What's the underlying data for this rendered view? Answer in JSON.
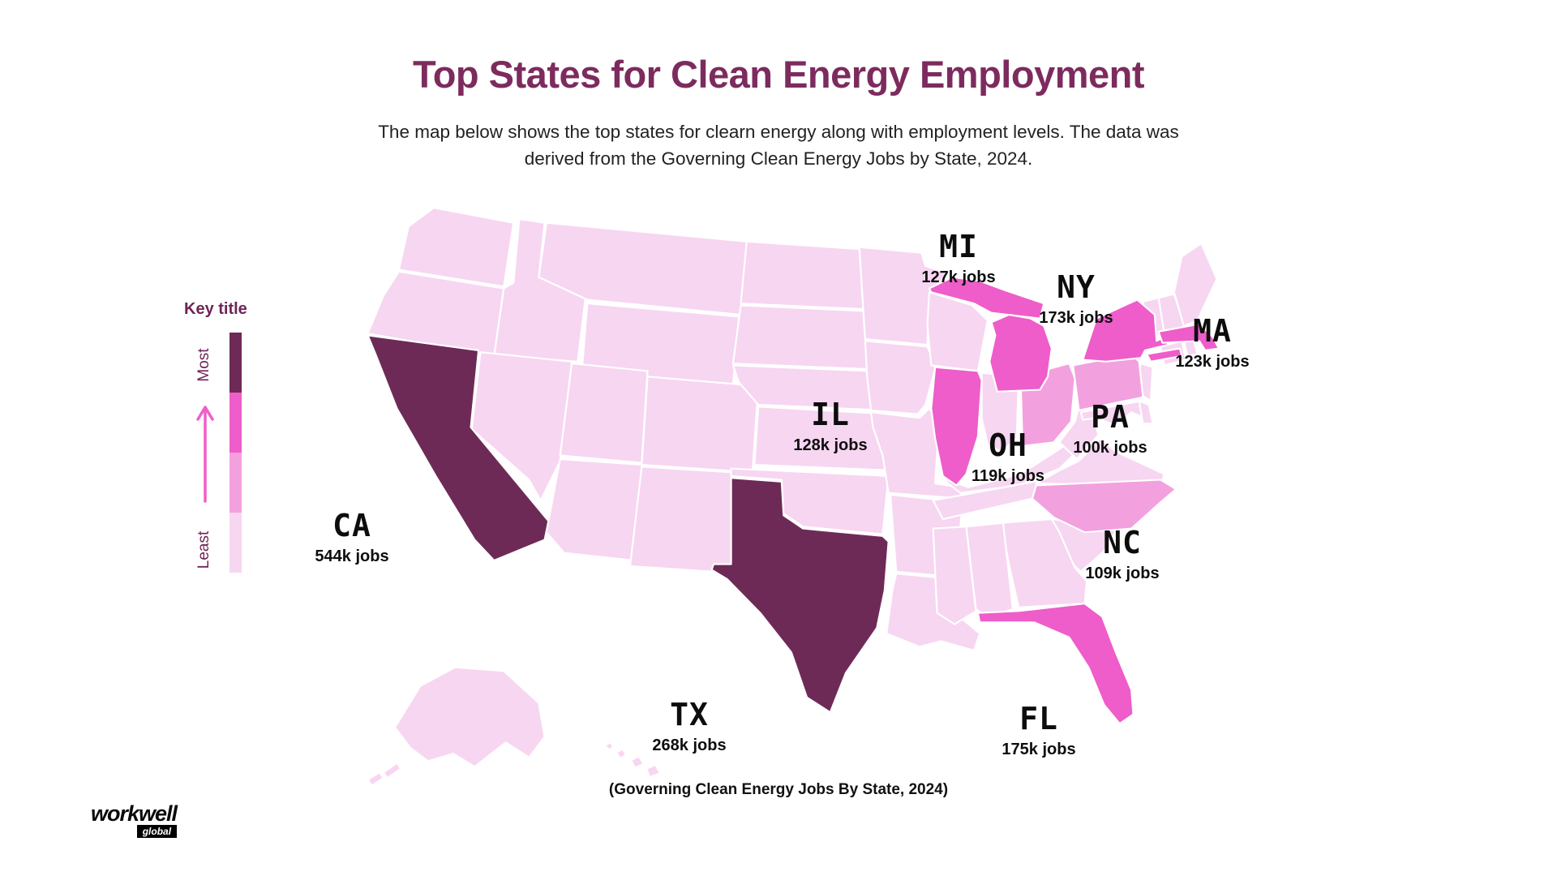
{
  "header": {
    "title": "Top States for Clean Energy Employment",
    "subtitle_line1": "The map below shows the top states for clearn energy along with employment levels. The data was",
    "subtitle_line2": "derived from the Governing Clean Energy Jobs by State, 2024.",
    "title_color": "#7d2b5e"
  },
  "legend": {
    "title": "Key title",
    "most_label": "Most",
    "least_label": "Least",
    "arrow_color": "#f05fc8",
    "colors": [
      "#6e2a56",
      "#ee5dc9",
      "#f3a0df",
      "#f7d6f1"
    ]
  },
  "map": {
    "border_color": "#ffffff",
    "tier_colors": [
      "#6e2a56",
      "#ee5dc9",
      "#f3a0df",
      "#f7d6f1"
    ],
    "states": [
      {
        "code": "WA",
        "tier": 4
      },
      {
        "code": "OR",
        "tier": 4
      },
      {
        "code": "ID",
        "tier": 4
      },
      {
        "code": "MT",
        "tier": 4
      },
      {
        "code": "WY",
        "tier": 4
      },
      {
        "code": "NV",
        "tier": 4
      },
      {
        "code": "UT",
        "tier": 4
      },
      {
        "code": "CO",
        "tier": 4
      },
      {
        "code": "AZ",
        "tier": 4
      },
      {
        "code": "NM",
        "tier": 4
      },
      {
        "code": "ND",
        "tier": 4
      },
      {
        "code": "SD",
        "tier": 4
      },
      {
        "code": "NE",
        "tier": 4
      },
      {
        "code": "KS",
        "tier": 4
      },
      {
        "code": "OK",
        "tier": 4
      },
      {
        "code": "MN",
        "tier": 4
      },
      {
        "code": "IA",
        "tier": 4
      },
      {
        "code": "MO",
        "tier": 4
      },
      {
        "code": "AR",
        "tier": 4
      },
      {
        "code": "LA",
        "tier": 4
      },
      {
        "code": "WI",
        "tier": 4
      },
      {
        "code": "IN",
        "tier": 4
      },
      {
        "code": "KY",
        "tier": 4
      },
      {
        "code": "TN",
        "tier": 4
      },
      {
        "code": "WV",
        "tier": 4
      },
      {
        "code": "VA",
        "tier": 4
      },
      {
        "code": "SC",
        "tier": 4
      },
      {
        "code": "GA",
        "tier": 4
      },
      {
        "code": "AL",
        "tier": 4
      },
      {
        "code": "MS",
        "tier": 4
      },
      {
        "code": "NJ",
        "tier": 4
      },
      {
        "code": "MD",
        "tier": 4
      },
      {
        "code": "DE",
        "tier": 4
      },
      {
        "code": "VT",
        "tier": 4
      },
      {
        "code": "NH",
        "tier": 4
      },
      {
        "code": "ME",
        "tier": 4
      },
      {
        "code": "CT",
        "tier": 4
      },
      {
        "code": "RI",
        "tier": 4
      },
      {
        "code": "AK",
        "tier": 4
      },
      {
        "code": "HI",
        "tier": 4
      },
      {
        "code": "OH",
        "tier": 3
      },
      {
        "code": "PA",
        "tier": 3
      },
      {
        "code": "NC",
        "tier": 3
      },
      {
        "code": "NY",
        "tier": 2
      },
      {
        "code": "FL",
        "tier": 2
      },
      {
        "code": "MI",
        "tier": 2
      },
      {
        "code": "IL",
        "tier": 2
      },
      {
        "code": "MA",
        "tier": 2
      },
      {
        "code": "CA",
        "tier": 1
      },
      {
        "code": "TX",
        "tier": 1
      }
    ],
    "labels": [
      {
        "code": "MI",
        "jobs": "127k jobs"
      },
      {
        "code": "NY",
        "jobs": "173k jobs"
      },
      {
        "code": "MA",
        "jobs": "123k jobs"
      },
      {
        "code": "IL",
        "jobs": "128k jobs"
      },
      {
        "code": "OH",
        "jobs": "119k jobs"
      },
      {
        "code": "PA",
        "jobs": "100k jobs"
      },
      {
        "code": "NC",
        "jobs": "109k jobs"
      },
      {
        "code": "CA",
        "jobs": "544k jobs"
      },
      {
        "code": "TX",
        "jobs": "268k jobs"
      },
      {
        "code": "FL",
        "jobs": "175k jobs"
      }
    ]
  },
  "caption": "(Governing Clean Energy Jobs By State, 2024)",
  "logo": {
    "name": "workwell",
    "sub": "global"
  },
  "chart_data": {
    "type": "heatmap",
    "subtype": "us-choropleth-map",
    "title": "Top States for Clean Energy Employment",
    "categories": [
      "CA",
      "TX",
      "FL",
      "NY",
      "IL",
      "MI",
      "MA",
      "OH",
      "NC",
      "PA"
    ],
    "values": [
      544,
      268,
      175,
      173,
      128,
      127,
      123,
      119,
      109,
      100
    ],
    "units": "thousand jobs (k jobs)",
    "source": "Governing Clean Energy Jobs By State, 2024",
    "legend": {
      "title": "Key title",
      "scale_low": "Least",
      "scale_high": "Most"
    },
    "color_tiers": {
      "most_dark_purple": [
        "CA",
        "TX"
      ],
      "bright_pink": [
        "NY",
        "FL",
        "MI",
        "IL",
        "MA"
      ],
      "medium_pink": [
        "OH",
        "PA",
        "NC"
      ],
      "least_light_pink": [
        "all other states"
      ]
    }
  }
}
